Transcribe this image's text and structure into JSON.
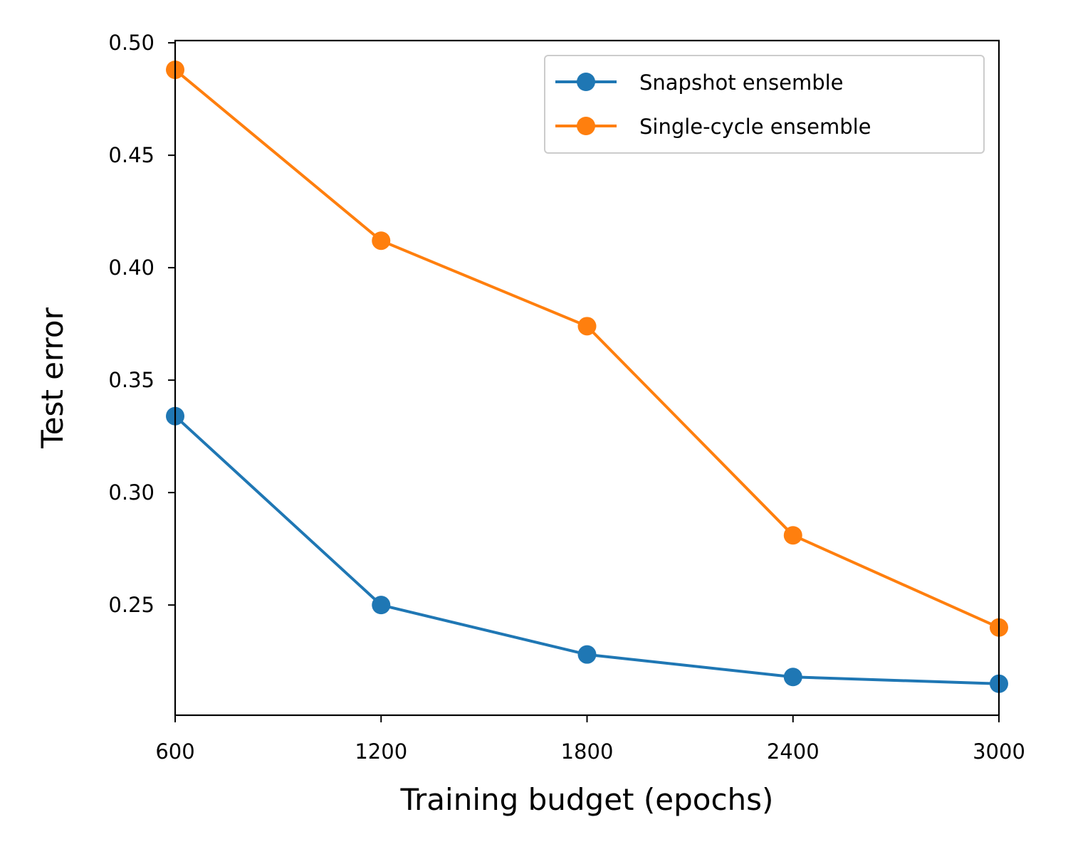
{
  "chart_data": {
    "type": "line",
    "title": "",
    "xlabel": "Training budget (epochs)",
    "ylabel": "Test error",
    "x": [
      600,
      1200,
      1800,
      2400,
      3000
    ],
    "x_tick_labels": [
      "600",
      "1200",
      "1800",
      "2400",
      "3000"
    ],
    "y_ticks": [
      0.25,
      0.3,
      0.35,
      0.4,
      0.45,
      0.5
    ],
    "y_tick_labels": [
      "0.25",
      "0.30",
      "0.35",
      "0.40",
      "0.45",
      "0.50"
    ],
    "xlim": [
      600,
      3000
    ],
    "ylim": [
      0.201,
      0.501
    ],
    "grid": false,
    "legend_position": "top-right",
    "series": [
      {
        "name": "Snapshot ensemble",
        "color": "#1f77b4",
        "values": [
          0.334,
          0.25,
          0.228,
          0.218,
          0.215
        ]
      },
      {
        "name": "Single-cycle ensemble",
        "color": "#ff7f0e",
        "values": [
          0.488,
          0.412,
          0.374,
          0.281,
          0.24
        ]
      }
    ]
  }
}
